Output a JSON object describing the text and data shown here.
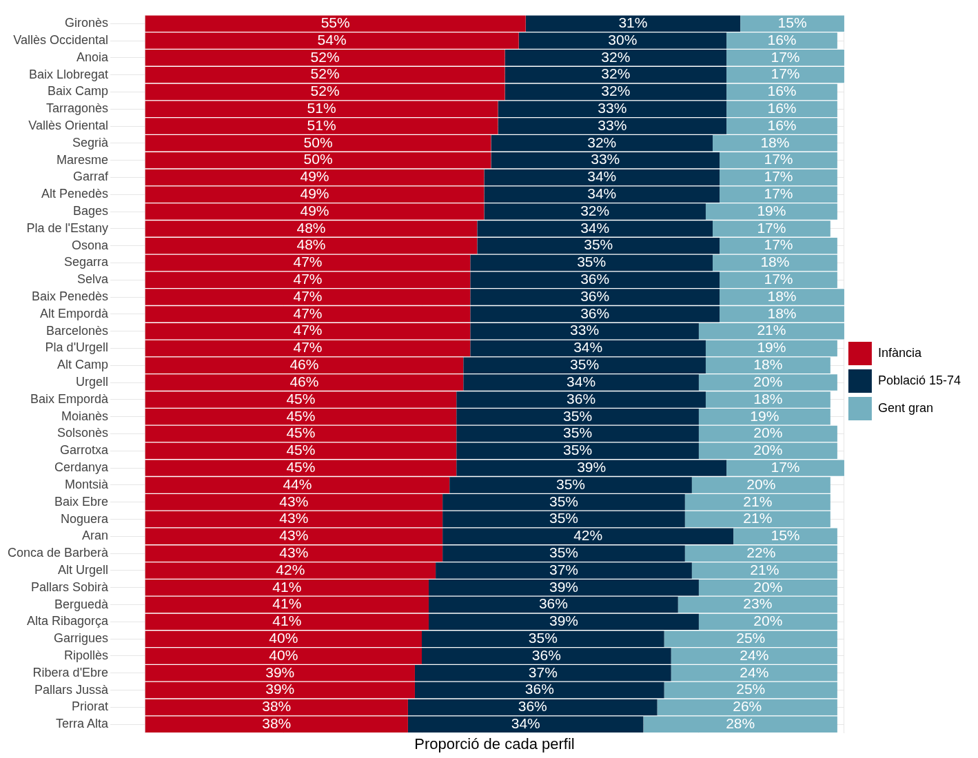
{
  "chart_data": {
    "type": "bar",
    "orientation": "horizontal",
    "stacked": true,
    "xlabel": "Proporció de cada perfil",
    "legend": "right",
    "grid": true,
    "tick_labels": "y",
    "categories": [
      "Gironès",
      "Vallès Occidental",
      "Anoia",
      "Baix Llobregat",
      "Baix Camp",
      "Tarragonès",
      "Vallès Oriental",
      "Segrià",
      "Maresme",
      "Garraf",
      "Alt Penedès",
      "Bages",
      "Pla de l'Estany",
      "Osona",
      "Segarra",
      "Selva",
      "Baix Penedès",
      "Alt Empordà",
      "Barcelonès",
      "Pla d'Urgell",
      "Alt Camp",
      "Urgell",
      "Baix Empordà",
      "Moianès",
      "Solsonès",
      "Garrotxa",
      "Cerdanya",
      "Montsià",
      "Baix Ebre",
      "Noguera",
      "Aran",
      "Conca de Barberà",
      "Alt Urgell",
      "Pallars Sobirà",
      "Berguedà",
      "Alta Ribagorça",
      "Garrigues",
      "Ripollès",
      "Ribera d'Ebre",
      "Pallars Jussà",
      "Priorat",
      "Terra Alta"
    ],
    "series": [
      {
        "name": "Infància",
        "color": "#c0001a",
        "values": [
          55,
          54,
          52,
          52,
          52,
          51,
          51,
          50,
          50,
          49,
          49,
          49,
          48,
          48,
          47,
          47,
          47,
          47,
          47,
          47,
          46,
          46,
          45,
          45,
          45,
          45,
          45,
          44,
          43,
          43,
          43,
          43,
          42,
          41,
          41,
          41,
          40,
          40,
          39,
          39,
          38,
          38
        ],
        "value_labels": [
          "55%",
          "54%",
          "52%",
          "52%",
          "52%",
          "51%",
          "51%",
          "50%",
          "50%",
          "49%",
          "49%",
          "49%",
          "48%",
          "48%",
          "47%",
          "47%",
          "47%",
          "47%",
          "47%",
          "47%",
          "46%",
          "46%",
          "45%",
          "45%",
          "45%",
          "45%",
          "45%",
          "44%",
          "43%",
          "43%",
          "43%",
          "43%",
          "42%",
          "41%",
          "41%",
          "41%",
          "40%",
          "40%",
          "39%",
          "39%",
          "38%",
          "38%"
        ]
      },
      {
        "name": "Població 15-74",
        "color": "#002a4a",
        "values": [
          31,
          30,
          32,
          32,
          32,
          33,
          33,
          32,
          33,
          34,
          34,
          32,
          34,
          35,
          35,
          36,
          36,
          36,
          33,
          34,
          35,
          34,
          36,
          35,
          35,
          35,
          39,
          35,
          35,
          35,
          42,
          35,
          37,
          39,
          36,
          39,
          35,
          36,
          37,
          36,
          36,
          34
        ],
        "value_labels": [
          "31%",
          "30%",
          "32%",
          "32%",
          "32%",
          "33%",
          "33%",
          "32%",
          "33%",
          "34%",
          "34%",
          "32%",
          "34%",
          "35%",
          "35%",
          "36%",
          "36%",
          "36%",
          "33%",
          "34%",
          "35%",
          "34%",
          "36%",
          "35%",
          "35%",
          "35%",
          "39%",
          "35%",
          "35%",
          "35%",
          "42%",
          "35%",
          "37%",
          "39%",
          "36%",
          "39%",
          "35%",
          "36%",
          "37%",
          "36%",
          "36%",
          "34%"
        ]
      },
      {
        "name": "Gent gran",
        "color": "#74b0c0",
        "values": [
          15,
          16,
          17,
          17,
          16,
          16,
          16,
          18,
          17,
          17,
          17,
          19,
          17,
          17,
          18,
          17,
          18,
          18,
          21,
          19,
          18,
          20,
          18,
          19,
          20,
          20,
          17,
          20,
          21,
          21,
          15,
          22,
          21,
          20,
          23,
          20,
          25,
          24,
          24,
          25,
          26,
          28
        ],
        "value_labels": [
          "15%",
          "16%",
          "17%",
          "17%",
          "16%",
          "16%",
          "16%",
          "18%",
          "17%",
          "17%",
          "17%",
          "19%",
          "17%",
          "17%",
          "18%",
          "17%",
          "18%",
          "18%",
          "21%",
          "19%",
          "18%",
          "20%",
          "18%",
          "19%",
          "20%",
          "20%",
          "17%",
          "20%",
          "21%",
          "21%",
          "15%",
          "22%",
          "21%",
          "20%",
          "23%",
          "20%",
          "25%",
          "24%",
          "24%",
          "25%",
          "26%",
          "28%"
        ]
      }
    ]
  }
}
